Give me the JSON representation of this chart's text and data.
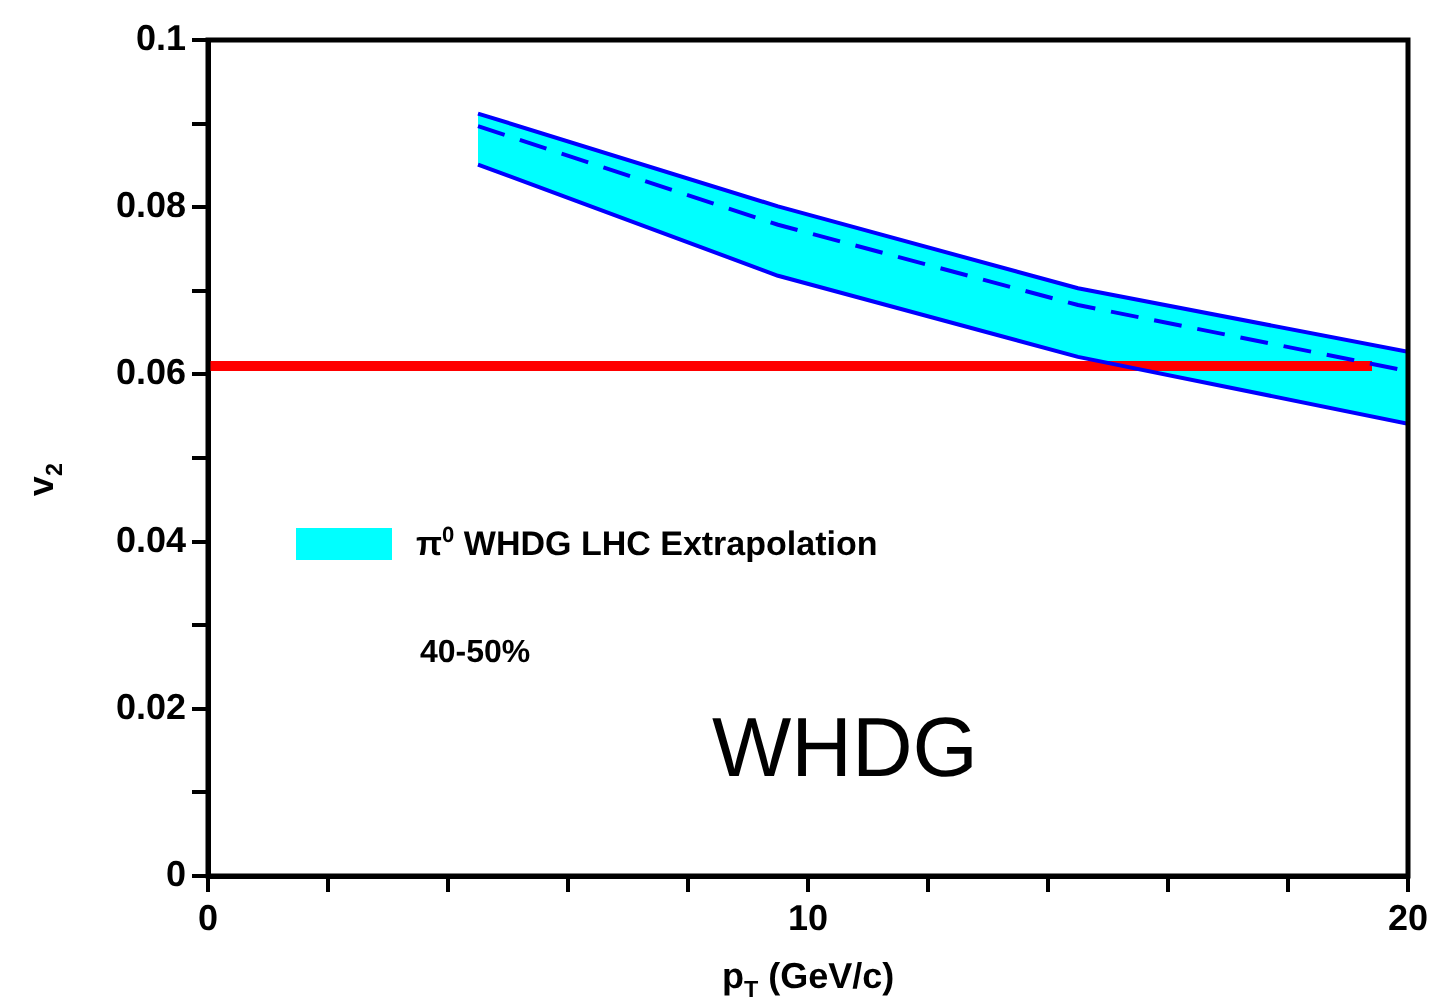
{
  "chart_data": {
    "type": "line",
    "xlabel": "p$_{T}$ (GeV/c)",
    "ylabel": "v$_{2}$",
    "x": [
      4.5,
      9.5,
      14.5,
      20
    ],
    "series": [
      {
        "name": "π$^{0}$ WHDG LHC Extrapolation",
        "color": "#0000ff",
        "colors": [
          "#00ffff",
          "#00ffff",
          "#00ffff",
          "#00ffff"
        ],
        "line_style": "dashed",
        "values": [
          0.0897,
          0.0779,
          0.0683,
          0.0604
        ],
        "lower": [
          0.0851,
          0.0718,
          0.0621,
          0.0541
        ],
        "upper": [
          0.0912,
          0.0801,
          0.0703,
          0.0627
        ]
      },
      {
        "color": "#0000ff",
        "line_style": "solid",
        "values": [
          0.0912,
          0.0801,
          0.0703,
          0.0627
        ]
      },
      {
        "color": "#0000ff",
        "line_style": "solid",
        "values": [
          0.0851,
          0.0718,
          0.0621,
          0.0541
        ]
      },
      {
        "color": "#ff0000",
        "line_style": "solid",
        "x": [
          0,
          19.4
        ],
        "values": [
          0.061,
          0.061
        ]
      }
    ],
    "annotations": [
      "40-50%",
      "WHDG"
    ],
    "xlim": [
      0,
      20
    ],
    "xticks": [
      0,
      {
        "value": 2,
        "label": null
      },
      {
        "value": 4,
        "label": null
      },
      {
        "value": 6,
        "label": null
      },
      {
        "value": 8,
        "label": null
      },
      10,
      {
        "value": 12,
        "label": null
      },
      {
        "value": 14,
        "label": null
      },
      {
        "value": 16,
        "label": null
      },
      {
        "value": 18,
        "label": null
      },
      20
    ],
    "ylim": [
      0,
      0.1
    ],
    "yticks": [
      0,
      {
        "value": 0.01,
        "label": null
      },
      0.02,
      {
        "value": 0.03,
        "label": null
      },
      0.04,
      {
        "value": 0.05,
        "label": null
      },
      0.06,
      {
        "value": 0.07,
        "label": null
      },
      0.08,
      {
        "value": 0.09,
        "label": null
      },
      0.1
    ],
    "grid": false,
    "legend": "left",
    "marker": "none"
  }
}
